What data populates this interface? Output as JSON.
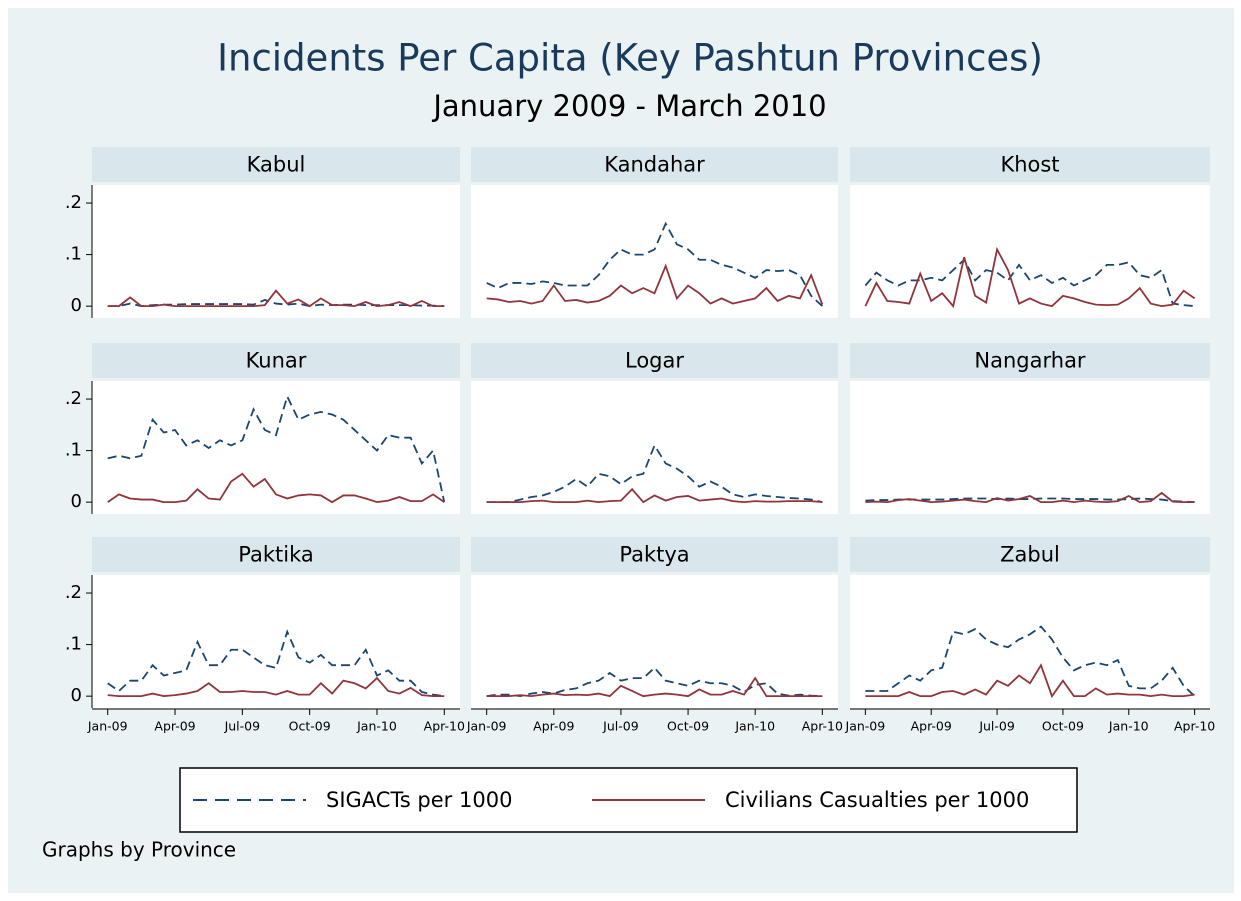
{
  "chart_data": {
    "type": "line",
    "title": "Incidents Per Capita (Key Pashtun Provinces)",
    "subtitle": "January 2009 - March 2010",
    "note": "Graphs by Province",
    "x": [
      0,
      0.5,
      1,
      1.5,
      2,
      2.5,
      3,
      3.5,
      4,
      4.5,
      5,
      5.5,
      6,
      6.5,
      7,
      7.5,
      8,
      8.5,
      9,
      9.5,
      10,
      10.5,
      11,
      11.5,
      12,
      12.5,
      13,
      13.5,
      14,
      14.5,
      15
    ],
    "xlim": [
      -0.7,
      15.7
    ],
    "xticks": [
      {
        "value": 0,
        "label": "Jan-09"
      },
      {
        "value": 3,
        "label": "Apr-09"
      },
      {
        "value": 6,
        "label": "Jul-09"
      },
      {
        "value": 9,
        "label": "Oct-09"
      },
      {
        "value": 12,
        "label": "Jan-10"
      },
      {
        "value": 15,
        "label": "Apr-10"
      }
    ],
    "ylim": [
      -0.023,
      0.235
    ],
    "yticks": [
      0,
      {
        "value": 0.1,
        "label": ".1"
      },
      {
        "value": 0.2,
        "label": ".2"
      }
    ],
    "legend": [
      {
        "name": "SIGACTs per 1000",
        "color": "#1a476f",
        "dash": true
      },
      {
        "name": "Civilians Casualties per 1000",
        "color": "#90353b",
        "dash": false
      }
    ],
    "panels": [
      {
        "title": "Kabul",
        "series": [
          {
            "values": [
              0,
              0,
              0.005,
              0,
              0.002,
              0.003,
              0.003,
              0.004,
              0.004,
              0.004,
              0.004,
              0.004,
              0.004,
              0.003,
              0.012,
              0.005,
              0.003,
              0.005,
              0,
              0.003,
              0.002,
              0.003,
              0.003,
              0.002,
              0.002,
              0.002,
              0.002,
              0.002,
              0.001,
              0.001,
              0
            ]
          },
          {
            "values": [
              0,
              0,
              0.017,
              0,
              0,
              0.003,
              0,
              0,
              0,
              0,
              0,
              0,
              0,
              0,
              0.002,
              0.03,
              0.005,
              0.013,
              0,
              0.015,
              0.002,
              0.002,
              0,
              0.008,
              0,
              0.002,
              0.008,
              0,
              0.01,
              0,
              0
            ]
          }
        ]
      },
      {
        "title": "Kandahar",
        "series": [
          {
            "values": [
              0.045,
              0.035,
              0.045,
              0.045,
              0.043,
              0.048,
              0.045,
              0.04,
              0.04,
              0.04,
              0.06,
              0.09,
              0.11,
              0.1,
              0.1,
              0.11,
              0.16,
              0.12,
              0.11,
              0.09,
              0.09,
              0.08,
              0.075,
              0.065,
              0.055,
              0.07,
              0.068,
              0.07,
              0.06,
              0.02,
              0
            ]
          },
          {
            "values": [
              0.015,
              0.013,
              0.008,
              0.01,
              0.005,
              0.01,
              0.04,
              0.01,
              0.012,
              0.007,
              0.01,
              0.02,
              0.04,
              0.025,
              0.035,
              0.025,
              0.078,
              0.015,
              0.04,
              0.025,
              0.005,
              0.015,
              0.005,
              0.01,
              0.015,
              0.035,
              0.01,
              0.02,
              0.015,
              0.06,
              0.003
            ]
          }
        ]
      },
      {
        "title": "Khost",
        "series": [
          {
            "values": [
              0.04,
              0.065,
              0.05,
              0.04,
              0.05,
              0.05,
              0.055,
              0.05,
              0.07,
              0.09,
              0.05,
              0.07,
              0.065,
              0.05,
              0.08,
              0.05,
              0.06,
              0.045,
              0.055,
              0.04,
              0.05,
              0.06,
              0.08,
              0.08,
              0.085,
              0.06,
              0.055,
              0.07,
              0.005,
              0.002,
              0
            ]
          },
          {
            "values": [
              0,
              0.045,
              0.01,
              0.008,
              0.005,
              0.063,
              0.01,
              0.025,
              0,
              0.095,
              0.02,
              0.007,
              0.11,
              0.07,
              0.005,
              0.015,
              0.005,
              0,
              0.02,
              0.015,
              0.008,
              0.003,
              0.002,
              0.003,
              0.015,
              0.035,
              0.005,
              0,
              0.003,
              0.03,
              0.015
            ]
          }
        ]
      },
      {
        "title": "Kunar",
        "series": [
          {
            "values": [
              0.085,
              0.09,
              0.085,
              0.09,
              0.16,
              0.135,
              0.14,
              0.11,
              0.12,
              0.105,
              0.12,
              0.11,
              0.12,
              0.18,
              0.14,
              0.13,
              0.205,
              0.16,
              0.17,
              0.175,
              0.17,
              0.16,
              0.14,
              0.12,
              0.1,
              0.13,
              0.125,
              0.125,
              0.075,
              0.1,
              0
            ]
          },
          {
            "values": [
              0,
              0.015,
              0.007,
              0.005,
              0.005,
              0,
              0,
              0.003,
              0.025,
              0.007,
              0.005,
              0.04,
              0.055,
              0.03,
              0.045,
              0.015,
              0.007,
              0.013,
              0.015,
              0.013,
              0,
              0.013,
              0.013,
              0.007,
              0,
              0.003,
              0.01,
              0.002,
              0.002,
              0.015,
              0
            ]
          }
        ]
      },
      {
        "title": "Logar",
        "series": [
          {
            "values": [
              0,
              0,
              0,
              0.005,
              0.01,
              0.013,
              0.02,
              0.03,
              0.045,
              0.03,
              0.055,
              0.05,
              0.035,
              0.05,
              0.055,
              0.11,
              0.075,
              0.065,
              0.05,
              0.03,
              0.04,
              0.03,
              0.015,
              0.01,
              0.015,
              0.012,
              0.01,
              0.008,
              0.007,
              0.005,
              0
            ]
          },
          {
            "values": [
              0,
              0,
              0,
              0,
              0.002,
              0.003,
              0,
              0,
              0,
              0.003,
              0,
              0.002,
              0.003,
              0.025,
              0,
              0.013,
              0.003,
              0.01,
              0.012,
              0.003,
              0.005,
              0.007,
              0.002,
              0,
              0.002,
              0.001,
              0.001,
              0.002,
              0.002,
              0.002,
              0
            ]
          }
        ]
      },
      {
        "title": "Nangarhar",
        "series": [
          {
            "values": [
              0.003,
              0.004,
              0.004,
              0.005,
              0.005,
              0.005,
              0.005,
              0.005,
              0.006,
              0.007,
              0.007,
              0.007,
              0.006,
              0.007,
              0.006,
              0.006,
              0.007,
              0.007,
              0.007,
              0.006,
              0.006,
              0.006,
              0.005,
              0.005,
              0.006,
              0.007,
              0.006,
              0.005,
              0.002,
              0.001,
              0
            ]
          },
          {
            "values": [
              0,
              0.001,
              0,
              0.004,
              0.006,
              0.003,
              0,
              0.001,
              0.003,
              0.005,
              0.002,
              0,
              0.008,
              0.003,
              0.006,
              0.012,
              0,
              0,
              0.003,
              0,
              0.003,
              0.001,
              0,
              0.002,
              0.012,
              0,
              0.002,
              0.018,
              0.001,
              0,
              0
            ]
          }
        ]
      },
      {
        "title": "Paktika",
        "series": [
          {
            "values": [
              0.025,
              0.01,
              0.03,
              0.03,
              0.06,
              0.04,
              0.045,
              0.05,
              0.105,
              0.06,
              0.06,
              0.09,
              0.09,
              0.075,
              0.06,
              0.055,
              0.125,
              0.075,
              0.065,
              0.08,
              0.06,
              0.06,
              0.06,
              0.09,
              0.04,
              0.05,
              0.03,
              0.03,
              0.008,
              0.003,
              0
            ]
          },
          {
            "values": [
              0.002,
              0,
              0,
              0,
              0.005,
              0,
              0.002,
              0.005,
              0.01,
              0.025,
              0.008,
              0.008,
              0.01,
              0.008,
              0.008,
              0.003,
              0.01,
              0.003,
              0.003,
              0.025,
              0.005,
              0.03,
              0.025,
              0.015,
              0.035,
              0.01,
              0.005,
              0.016,
              0.002,
              0,
              0
            ]
          }
        ]
      },
      {
        "title": "Paktya",
        "series": [
          {
            "values": [
              0,
              0.003,
              0.003,
              0,
              0.005,
              0.008,
              0.005,
              0.012,
              0.015,
              0.025,
              0.03,
              0.045,
              0.03,
              0.035,
              0.035,
              0.055,
              0.03,
              0.025,
              0.02,
              0.03,
              0.025,
              0.025,
              0.02,
              0.008,
              0.022,
              0.025,
              0.005,
              0.001,
              0.003,
              0.001,
              0
            ]
          },
          {
            "values": [
              0,
              0,
              0,
              0.002,
              0,
              0.003,
              0.005,
              0.002,
              0.003,
              0.002,
              0.005,
              0,
              0.02,
              0.01,
              0,
              0.003,
              0.005,
              0.003,
              0,
              0.013,
              0.003,
              0.003,
              0.01,
              0.003,
              0.035,
              0,
              0,
              0,
              0,
              0,
              0
            ]
          }
        ]
      },
      {
        "title": "Zabul",
        "series": [
          {
            "values": [
              0.01,
              0.01,
              0.01,
              0.025,
              0.04,
              0.03,
              0.05,
              0.055,
              0.125,
              0.12,
              0.13,
              0.11,
              0.1,
              0.095,
              0.11,
              0.12,
              0.135,
              0.11,
              0.075,
              0.05,
              0.06,
              0.065,
              0.06,
              0.07,
              0.02,
              0.015,
              0.015,
              0.03,
              0.055,
              0.02,
              0
            ]
          },
          {
            "values": [
              0,
              0,
              0,
              0,
              0.008,
              0,
              0,
              0.008,
              0.01,
              0.003,
              0.013,
              0.003,
              0.03,
              0.02,
              0.04,
              0.025,
              0.06,
              0,
              0.03,
              0,
              0,
              0.015,
              0.003,
              0.005,
              0.003,
              0.003,
              0,
              0.003,
              0,
              0,
              0.003
            ]
          }
        ]
      }
    ]
  }
}
